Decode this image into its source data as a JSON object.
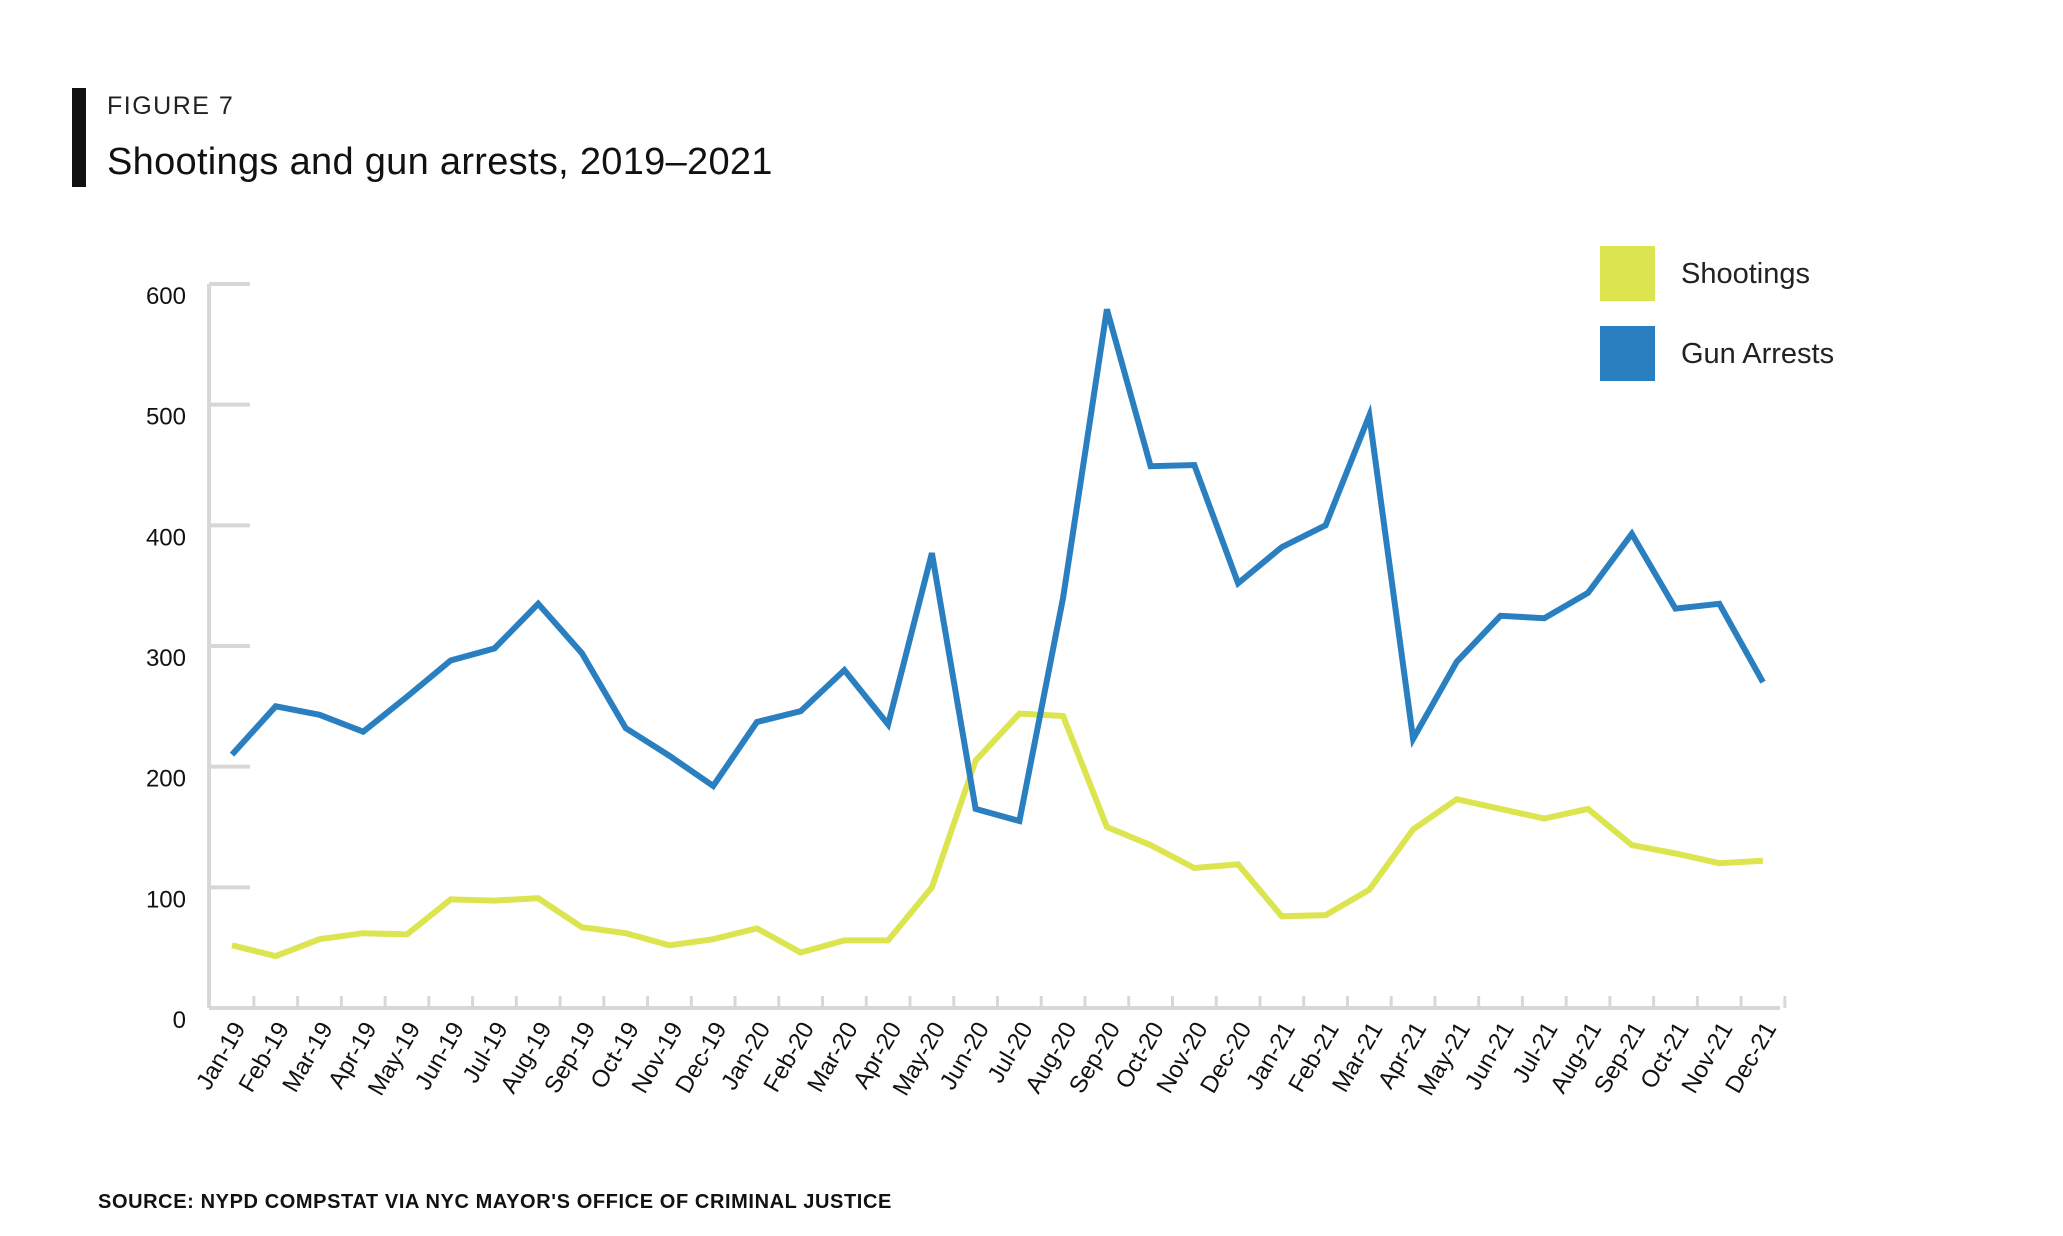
{
  "figure_label": "FIGURE 7",
  "title": "Shootings and gun arrests, 2019–2021",
  "source": "SOURCE: NYPD COMPSTAT VIA NYC MAYOR'S OFFICE OF CRIMINAL JUSTICE",
  "chart_data": {
    "type": "line",
    "categories": [
      "Jan-19",
      "Feb-19",
      "Mar-19",
      "Apr-19",
      "May-19",
      "Jun-19",
      "Jul-19",
      "Aug-19",
      "Sep-19",
      "Oct-19",
      "Nov-19",
      "Dec-19",
      "Jan-20",
      "Feb-20",
      "Mar-20",
      "Apr-20",
      "May-20",
      "Jun-20",
      "Jul-20",
      "Aug-20",
      "Sep-20",
      "Oct-20",
      "Nov-20",
      "Dec-20",
      "Jan-21",
      "Feb-21",
      "Mar-21",
      "Apr-21",
      "May-21",
      "Jun-21",
      "Jul-21",
      "Aug-21",
      "Sep-21",
      "Oct-21",
      "Nov-21",
      "Dec-21"
    ],
    "series": [
      {
        "name": "Shootings",
        "color": "#dce54f",
        "values": [
          52,
          43,
          57,
          62,
          61,
          90,
          89,
          91,
          67,
          62,
          52,
          57,
          66,
          46,
          56,
          56,
          100,
          205,
          244,
          242,
          150,
          135,
          116,
          119,
          76,
          77,
          98,
          148,
          173,
          165,
          157,
          165,
          135,
          128,
          120,
          122
        ]
      },
      {
        "name": "Gun Arrests",
        "color": "#2a7fc0",
        "values": [
          210,
          250,
          243,
          229,
          258,
          288,
          298,
          335,
          294,
          232,
          209,
          184,
          237,
          246,
          280,
          235,
          377,
          165,
          155,
          340,
          579,
          449,
          450,
          352,
          382,
          400,
          491,
          223,
          287,
          325,
          323,
          344,
          393,
          331,
          335,
          270
        ]
      }
    ],
    "yticks": [
      0,
      100,
      200,
      300,
      400,
      500,
      600
    ],
    "ylim": [
      0,
      600
    ],
    "legend": "top-right",
    "grid": false
  }
}
